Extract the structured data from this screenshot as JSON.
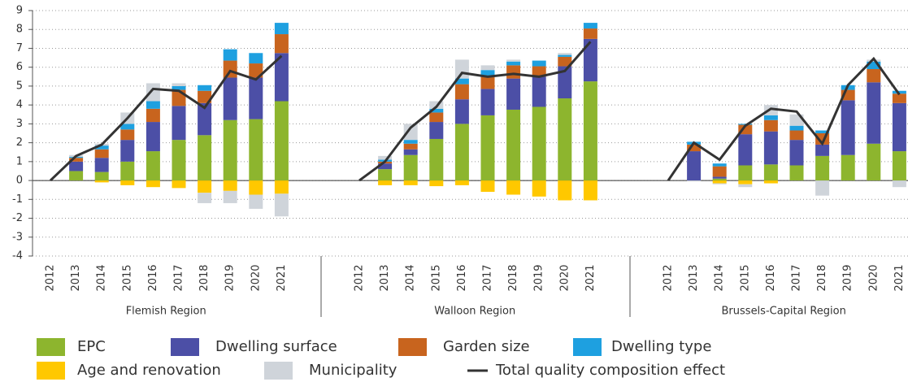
{
  "chart_data": {
    "type": "stacked-bar-line",
    "ylim": [
      -4,
      9
    ],
    "yticks": [
      -4,
      -3,
      -2,
      -1,
      0,
      1,
      2,
      3,
      4,
      5,
      6,
      7,
      8,
      9
    ],
    "grid": true,
    "series": [
      {
        "name": "EPC",
        "color": "#8db52e"
      },
      {
        "name": "Dwelling surface",
        "color": "#4c4fa6"
      },
      {
        "name": "Garden size",
        "color": "#c8641e"
      },
      {
        "name": "Dwelling type",
        "color": "#1ea0e0"
      },
      {
        "name": "Age and renovation",
        "color": "#ffc800"
      },
      {
        "name": "Municipality",
        "color": "#cfd4da"
      }
    ],
    "line": {
      "name": "Total quality composition effect",
      "color": "#333333"
    },
    "groups": [
      {
        "name": "Flemish Region",
        "categories": [
          "2012",
          "2013",
          "2014",
          "2015",
          "2016",
          "2017",
          "2018",
          "2019",
          "2020",
          "2021"
        ],
        "series": [
          {
            "values": [
              0,
              0.5,
              0.45,
              1.0,
              1.55,
              2.15,
              2.4,
              3.2,
              3.25,
              4.2
            ]
          },
          {
            "values": [
              0,
              0.5,
              0.75,
              1.15,
              1.55,
              1.8,
              1.7,
              2.25,
              2.2,
              2.55
            ]
          },
          {
            "values": [
              0,
              0.2,
              0.45,
              0.55,
              0.7,
              0.85,
              0.65,
              0.9,
              0.75,
              1.0
            ]
          },
          {
            "values": [
              0,
              0.05,
              0.2,
              0.3,
              0.4,
              0.2,
              0.3,
              0.6,
              0.55,
              0.6
            ]
          },
          {
            "values": [
              0,
              0,
              -0.1,
              -0.25,
              -0.35,
              -0.4,
              -0.65,
              -0.55,
              -0.75,
              -0.7
            ]
          },
          {
            "values": [
              0,
              0.1,
              0.1,
              0.6,
              0.95,
              0.15,
              -0.55,
              -0.65,
              -0.75,
              -1.2
            ]
          }
        ],
        "total": [
          0,
          1.3,
          1.9,
          3.3,
          4.85,
          4.75,
          3.85,
          5.8,
          5.35,
          6.6
        ]
      },
      {
        "name": "Walloon Region",
        "categories": [
          "2012",
          "2013",
          "2014",
          "2015",
          "2016",
          "2017",
          "2018",
          "2019",
          "2020",
          "2021"
        ],
        "series": [
          {
            "values": [
              0,
              0.6,
              1.35,
              2.2,
              3.0,
              3.45,
              3.75,
              3.9,
              4.35,
              5.25
            ]
          },
          {
            "values": [
              0,
              0.3,
              0.3,
              0.9,
              1.3,
              1.4,
              1.65,
              1.6,
              1.7,
              2.25
            ]
          },
          {
            "values": [
              0,
              0.1,
              0.3,
              0.5,
              0.8,
              0.7,
              0.7,
              0.55,
              0.5,
              0.55
            ]
          },
          {
            "values": [
              0,
              0.1,
              0.2,
              0.2,
              0.3,
              0.3,
              0.2,
              0.3,
              0.1,
              0.3
            ]
          },
          {
            "values": [
              0,
              -0.25,
              -0.25,
              -0.3,
              -0.25,
              -0.6,
              -0.75,
              -0.85,
              -1.05,
              -1.05
            ]
          },
          {
            "values": [
              0,
              0.2,
              0.85,
              0.4,
              1.0,
              0.25,
              0.1,
              0,
              0.1,
              0
            ]
          }
        ],
        "total": [
          0,
          1.0,
          2.8,
          3.9,
          5.7,
          5.5,
          5.65,
          5.5,
          5.8,
          7.35
        ]
      },
      {
        "name": "Brussels-Capital Region",
        "categories": [
          "2012",
          "2013",
          "2014",
          "2015",
          "2016",
          "2017",
          "2018",
          "2019",
          "2020",
          "2021"
        ],
        "series": [
          {
            "values": [
              0,
              0,
              0.1,
              0.8,
              0.85,
              0.8,
              1.3,
              1.35,
              1.95,
              1.55
            ]
          },
          {
            "values": [
              0,
              1.55,
              0.1,
              1.65,
              1.75,
              1.35,
              0.6,
              2.9,
              3.25,
              2.55
            ]
          },
          {
            "values": [
              0,
              0.35,
              0.55,
              0.5,
              0.6,
              0.5,
              0.6,
              0.55,
              0.7,
              0.5
            ]
          },
          {
            "values": [
              0,
              0.15,
              0.15,
              0.05,
              0.25,
              0.25,
              0.15,
              0.25,
              0.4,
              0.15
            ]
          },
          {
            "values": [
              0,
              0,
              -0.15,
              -0.2,
              -0.15,
              0,
              0,
              0,
              0,
              0
            ]
          },
          {
            "values": [
              0,
              -0.05,
              -0.05,
              -0.15,
              0.55,
              0.6,
              -0.8,
              0,
              0.1,
              -0.35
            ]
          }
        ],
        "total": [
          0,
          2.0,
          1.1,
          2.9,
          3.8,
          3.65,
          1.95,
          5.05,
          6.45,
          4.55
        ]
      }
    ]
  }
}
